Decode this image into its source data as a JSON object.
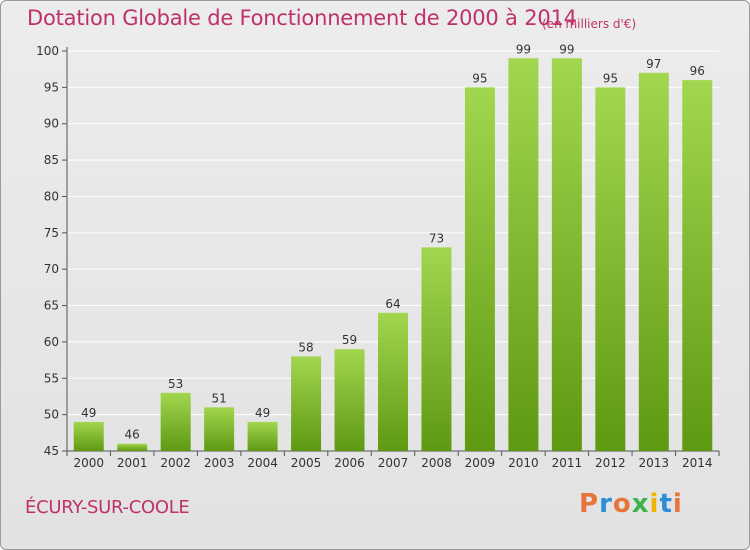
{
  "header": {
    "title": "Dotation Globale de Fonctionnement de 2000 à 2014",
    "unit": "(en milliers d'€)"
  },
  "footer": {
    "commune": "ÉCURY-SUR-COOLE",
    "logo": "Proxiti"
  },
  "colors": {
    "title": "#c0306a",
    "bar_top": "#9fd24a",
    "bar_bottom": "#5f9a12",
    "grid": "#ffffff"
  },
  "chart_data": {
    "type": "bar",
    "title": "Dotation Globale de Fonctionnement de 2000 à 2014",
    "subtitle": "(en milliers d'€)",
    "xlabel": "",
    "ylabel": "",
    "categories": [
      "2000",
      "2001",
      "2002",
      "2003",
      "2004",
      "2005",
      "2006",
      "2007",
      "2008",
      "2009",
      "2010",
      "2011",
      "2012",
      "2013",
      "2014"
    ],
    "values": [
      49,
      46,
      53,
      51,
      49,
      58,
      59,
      64,
      73,
      95,
      99,
      99,
      95,
      97,
      96
    ],
    "ylim": [
      45,
      100
    ],
    "yticks": [
      45,
      50,
      55,
      60,
      65,
      70,
      75,
      80,
      85,
      90,
      95,
      100
    ],
    "grid": true,
    "data_labels": true
  }
}
